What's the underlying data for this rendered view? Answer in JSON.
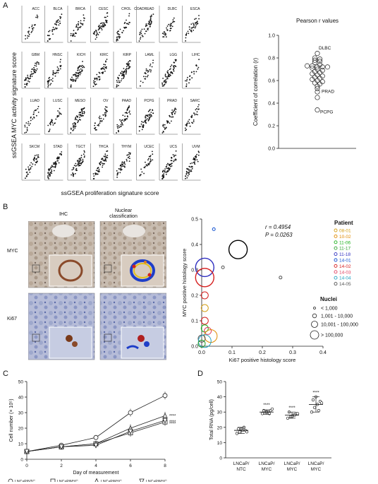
{
  "panels": {
    "a": "A",
    "b": "B",
    "c": "C",
    "d": "D"
  },
  "panel_a": {
    "ylabel": "ssGSEA MYC activity signature score",
    "xlabel": "ssGSEA proliferation signature score",
    "cancers": [
      "ACC",
      "BLCA",
      "BRCA",
      "CESC",
      "CHOL",
      "COADREAD",
      "DLBC",
      "ESCA",
      "GBM",
      "HNSC",
      "KICH",
      "KIRC",
      "KIRP",
      "LAML",
      "LGG",
      "LIHC",
      "LUAD",
      "LUSC",
      "MESO",
      "OV",
      "PAAD",
      "PCPG",
      "PRAD",
      "SARC",
      "SKCM",
      "STAD",
      "TGCT",
      "THCA",
      "THYM",
      "UCEC",
      "UCS",
      "UVM"
    ]
  },
  "chart_data": [
    {
      "type": "scatter",
      "title": "Pearson r values",
      "ylabel": "Coefficient of correlation (r)",
      "ylim": [
        0.0,
        1.0
      ],
      "yticks": [
        "0.0",
        "0.2",
        "0.4",
        "0.6",
        "0.8",
        "1.0"
      ],
      "annotations": [
        "DLBC",
        "PRAD",
        "PCPG"
      ],
      "values": [
        0.84,
        0.8,
        0.79,
        0.78,
        0.77,
        0.76,
        0.74,
        0.73,
        0.73,
        0.72,
        0.72,
        0.72,
        0.71,
        0.7,
        0.69,
        0.68,
        0.67,
        0.66,
        0.65,
        0.64,
        0.63,
        0.62,
        0.61,
        0.6,
        0.59,
        0.58,
        0.57,
        0.55,
        0.53,
        0.5,
        0.45,
        0.34
      ]
    },
    {
      "type": "scatter",
      "xlabel": "Ki67 positive histology score",
      "ylabel": "MYC positive histology score",
      "xlim": [
        0,
        0.4
      ],
      "ylim": [
        0,
        0.5
      ],
      "xticks": [
        "0.0",
        "0.1",
        "0.2",
        "0.3",
        "0.4"
      ],
      "yticks": [
        "0.0",
        "0.1",
        "0.2",
        "0.3",
        "0.4",
        "0.5"
      ],
      "stats": [
        "r = 0.4954",
        "P = 0.0263"
      ],
      "legend_patient_title": "Patient",
      "patients": [
        {
          "name": "08-01",
          "color": "#d4a017"
        },
        {
          "name": "10-02",
          "color": "#e08a00"
        },
        {
          "name": "11-06",
          "color": "#1ab01a"
        },
        {
          "name": "11-17",
          "color": "#2ca02c"
        },
        {
          "name": "11-18",
          "color": "#3030c0"
        },
        {
          "name": "14-01",
          "color": "#1050d0"
        },
        {
          "name": "14-02",
          "color": "#d62020"
        },
        {
          "name": "14-03",
          "color": "#e04060"
        },
        {
          "name": "14-04",
          "color": "#20a0c0"
        },
        {
          "name": "14-05",
          "color": "#505050"
        }
      ],
      "legend_nuclei_title": "Nuclei",
      "nuclei_sizes": [
        "< 1,000",
        "1,001 - 10,000",
        "10,001 - 100,000",
        "> 100,000"
      ],
      "points": [
        {
          "x": 0.04,
          "y": 0.46,
          "size": 0,
          "color": "#1050d0"
        },
        {
          "x": 0.12,
          "y": 0.38,
          "size": 3,
          "color": "#000000"
        },
        {
          "x": 0.07,
          "y": 0.31,
          "size": 0,
          "color": "#505050"
        },
        {
          "x": 0.26,
          "y": 0.27,
          "size": 0,
          "color": "#505050"
        },
        {
          "x": 0.01,
          "y": 0.31,
          "size": 3,
          "color": "#3030c0"
        },
        {
          "x": 0.01,
          "y": 0.27,
          "size": 3,
          "color": "#d62020"
        },
        {
          "x": 0.01,
          "y": 0.2,
          "size": 1,
          "color": "#d62020"
        },
        {
          "x": 0.01,
          "y": 0.15,
          "size": 1,
          "color": "#d4a017"
        },
        {
          "x": 0.01,
          "y": 0.1,
          "size": 1,
          "color": "#d62020"
        },
        {
          "x": 0.01,
          "y": 0.07,
          "size": 1,
          "color": "#1ab01a"
        },
        {
          "x": 0.02,
          "y": 0.06,
          "size": 1,
          "color": "#e04060"
        },
        {
          "x": 0.03,
          "y": 0.04,
          "size": 2,
          "color": "#e08a00"
        },
        {
          "x": 0.0,
          "y": 0.03,
          "size": 1,
          "color": "#505050"
        },
        {
          "x": 0.01,
          "y": 0.02,
          "size": 2,
          "color": "#20a0c0"
        },
        {
          "x": 0.0,
          "y": 0.01,
          "size": 1,
          "color": "#2ca02c"
        }
      ]
    },
    {
      "type": "line",
      "xlabel": "Day of measurement",
      "ylabel": "Cell number (× 10⁵)",
      "xlim": [
        0,
        8
      ],
      "ylim": [
        0,
        50
      ],
      "xticks": [
        "0",
        "2",
        "4",
        "6",
        "8"
      ],
      "yticks": [
        "0",
        "10",
        "20",
        "30",
        "40",
        "50"
      ],
      "x": [
        0,
        2,
        4,
        6,
        8
      ],
      "series": [
        {
          "name": "LNCaP/NTC",
          "marker": "circle",
          "values": [
            5,
            9,
            14,
            30,
            41
          ]
        },
        {
          "name": "LNCaP/MYC",
          "marker": "square",
          "values": [
            5,
            8,
            10,
            17,
            24
          ]
        },
        {
          "name": "LNCaP/MYC",
          "marker": "triangle",
          "values": [
            5,
            8,
            10,
            20,
            28
          ]
        },
        {
          "name": "LNCaP/MYC",
          "marker": "triangle-down",
          "values": [
            5,
            8,
            9,
            18,
            25
          ]
        }
      ],
      "significance": [
        "****",
        "****",
        "****"
      ]
    },
    {
      "type": "scatter",
      "ylabel": "Total RNA (pg/cell)",
      "ylim": [
        0,
        50
      ],
      "yticks": [
        "0",
        "10",
        "20",
        "30",
        "40",
        "50"
      ],
      "categories": [
        "LNCaP/ NTC",
        "LNCaP/ MYC",
        "LNCaP/ MYC",
        "LNCaP/ MYC"
      ],
      "means": [
        18,
        30,
        28,
        35
      ],
      "sd": [
        2,
        1.5,
        2,
        5
      ],
      "points": [
        [
          16,
          17,
          18,
          18,
          19,
          19,
          20,
          17
        ],
        [
          29,
          30,
          30,
          31,
          31,
          30,
          29,
          32
        ],
        [
          26,
          27,
          28,
          29,
          30,
          27,
          28,
          29
        ],
        [
          30,
          33,
          35,
          37,
          38,
          40,
          31,
          36
        ]
      ],
      "significance": [
        "",
        "****",
        "****",
        "****"
      ]
    }
  ],
  "panel_b": {
    "col_headers": [
      "IHC",
      "Nuclear\nclassification"
    ],
    "row_labels": [
      "MYC",
      "Ki67"
    ]
  }
}
